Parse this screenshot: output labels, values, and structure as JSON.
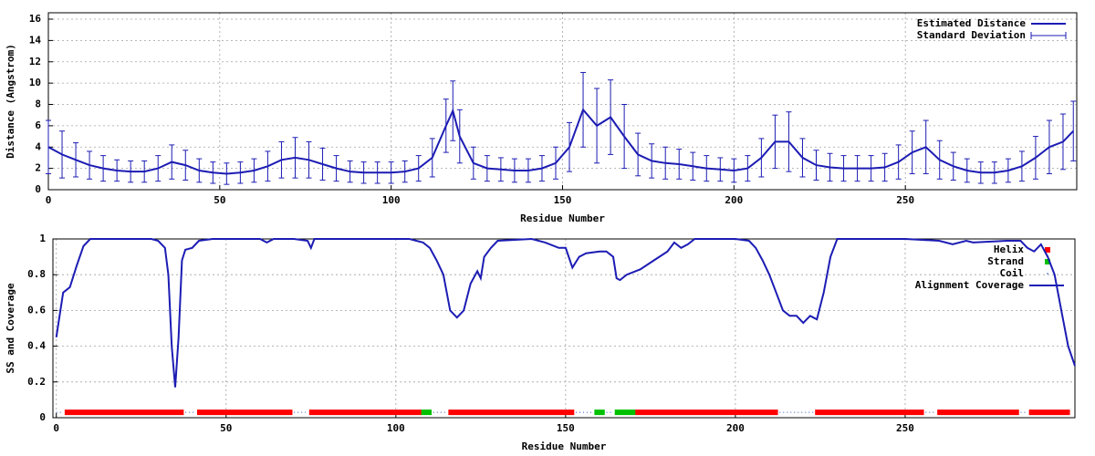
{
  "chart_data": [
    {
      "type": "line",
      "y_label": "Distance (Angstrom)",
      "x_label": "Residue Number",
      "grid": true,
      "xlim": [
        0,
        300
      ],
      "xticks": [
        0,
        50,
        100,
        150,
        200,
        250
      ],
      "ylim": [
        0,
        16.6
      ],
      "yticks": [
        0,
        2,
        4,
        6,
        8,
        10,
        12,
        14,
        16
      ],
      "legend": "top-right",
      "x": [
        0,
        4,
        8,
        12,
        16,
        20,
        24,
        28,
        32,
        36,
        40,
        44,
        48,
        52,
        56,
        60,
        64,
        68,
        72,
        76,
        80,
        84,
        88,
        92,
        96,
        100,
        104,
        108,
        112,
        116,
        118,
        120,
        124,
        128,
        132,
        136,
        140,
        144,
        148,
        152,
        156,
        160,
        164,
        168,
        172,
        176,
        180,
        184,
        188,
        192,
        196,
        200,
        204,
        208,
        212,
        216,
        220,
        224,
        228,
        232,
        236,
        240,
        244,
        248,
        252,
        256,
        260,
        264,
        268,
        272,
        276,
        280,
        284,
        288,
        292,
        296,
        299
      ],
      "series": [
        {
          "name": "Estimated Distance",
          "color": "#1c1cb4",
          "error_name": "Standard Deviation",
          "values": [
            4.0,
            3.3,
            2.8,
            2.3,
            2.0,
            1.8,
            1.7,
            1.7,
            2.0,
            2.6,
            2.3,
            1.8,
            1.6,
            1.5,
            1.6,
            1.8,
            2.2,
            2.8,
            3.0,
            2.8,
            2.4,
            2.0,
            1.7,
            1.6,
            1.6,
            1.6,
            1.7,
            2.0,
            3.0,
            6.0,
            7.4,
            5.0,
            2.5,
            2.0,
            1.9,
            1.8,
            1.8,
            2.0,
            2.5,
            4.0,
            7.5,
            6.0,
            6.8,
            5.0,
            3.3,
            2.7,
            2.5,
            2.4,
            2.2,
            2.0,
            1.9,
            1.8,
            2.0,
            3.0,
            4.5,
            4.5,
            3.0,
            2.3,
            2.1,
            2.0,
            2.0,
            2.0,
            2.1,
            2.6,
            3.5,
            4.0,
            2.8,
            2.2,
            1.8,
            1.6,
            1.6,
            1.8,
            2.2,
            3.0,
            4.0,
            4.5,
            5.5
          ],
          "errors": [
            2.5,
            2.2,
            1.6,
            1.3,
            1.2,
            1.0,
            1.0,
            1.0,
            1.2,
            1.6,
            1.4,
            1.1,
            1.0,
            1.0,
            1.0,
            1.1,
            1.4,
            1.7,
            1.9,
            1.7,
            1.5,
            1.2,
            1.0,
            1.0,
            1.0,
            1.0,
            1.0,
            1.2,
            1.8,
            2.5,
            2.8,
            2.5,
            1.5,
            1.2,
            1.1,
            1.1,
            1.1,
            1.2,
            1.5,
            2.3,
            3.5,
            3.5,
            3.5,
            3.0,
            2.0,
            1.6,
            1.5,
            1.4,
            1.3,
            1.2,
            1.1,
            1.1,
            1.2,
            1.8,
            2.5,
            2.8,
            1.8,
            1.4,
            1.3,
            1.2,
            1.2,
            1.2,
            1.3,
            1.6,
            2.0,
            2.5,
            1.8,
            1.3,
            1.1,
            1.0,
            1.0,
            1.1,
            1.4,
            2.0,
            2.5,
            2.6,
            2.8
          ]
        }
      ]
    },
    {
      "type": "line",
      "y_label": "SS and Coverage",
      "x_label": "Residue Number",
      "grid": true,
      "xlim": [
        -1,
        300
      ],
      "xticks": [
        0,
        50,
        100,
        150,
        200,
        250
      ],
      "ylim": [
        0,
        1
      ],
      "yticks": [
        0,
        0.2,
        0.4,
        0.6,
        0.8,
        1
      ],
      "legend": "top-right",
      "ss_tracks": [
        {
          "name": "Helix",
          "color": "#ff0000",
          "y": 0.03,
          "ranges": [
            [
              3,
              37
            ],
            [
              42,
              69
            ],
            [
              75,
              107
            ],
            [
              116,
              126
            ],
            [
              127,
              152
            ],
            [
              171,
              212
            ],
            [
              224,
              255
            ],
            [
              260,
              283
            ],
            [
              287,
              298
            ]
          ]
        },
        {
          "name": "Strand",
          "color": "#00c000",
          "y": 0.03,
          "ranges": [
            [
              108,
              110
            ],
            [
              159,
              161
            ],
            [
              165,
              170
            ]
          ]
        },
        {
          "name": "Coil",
          "color": "#3050c0",
          "y": 0.03,
          "ranges": [
            [
              0,
              2
            ],
            [
              38,
              41
            ],
            [
              70,
              74
            ],
            [
              111,
              115
            ],
            [
              153,
              158
            ],
            [
              162,
              164
            ],
            [
              213,
              223
            ],
            [
              256,
              259
            ],
            [
              284,
              286
            ]
          ]
        }
      ],
      "x": [
        0,
        2,
        4,
        6,
        8,
        10,
        20,
        28,
        30,
        32,
        33,
        34,
        35,
        36,
        37,
        38,
        40,
        42,
        46,
        60,
        62,
        64,
        70,
        74,
        75,
        76,
        100,
        104,
        108,
        110,
        112,
        114,
        116,
        118,
        120,
        122,
        124,
        125,
        126,
        128,
        130,
        140,
        144,
        148,
        150,
        152,
        154,
        156,
        160,
        162,
        164,
        165,
        166,
        168,
        172,
        176,
        180,
        182,
        184,
        186,
        188,
        200,
        204,
        206,
        208,
        210,
        212,
        214,
        216,
        218,
        220,
        222,
        224,
        226,
        228,
        230,
        250,
        260,
        264,
        268,
        270,
        280,
        284,
        286,
        288,
        290,
        292,
        294,
        296,
        298,
        300
      ],
      "series": [
        {
          "name": "Alignment Coverage",
          "color": "#1c1cb4",
          "values": [
            0.45,
            0.7,
            0.73,
            0.85,
            0.96,
            1.0,
            1.0,
            1.0,
            0.99,
            0.95,
            0.8,
            0.4,
            0.17,
            0.45,
            0.88,
            0.94,
            0.95,
            0.99,
            1.0,
            1.0,
            0.98,
            1.0,
            1.0,
            0.99,
            0.95,
            1.0,
            1.0,
            1.0,
            0.98,
            0.95,
            0.88,
            0.8,
            0.6,
            0.56,
            0.6,
            0.75,
            0.82,
            0.78,
            0.9,
            0.95,
            0.99,
            1.0,
            0.98,
            0.95,
            0.95,
            0.84,
            0.9,
            0.92,
            0.93,
            0.93,
            0.9,
            0.78,
            0.77,
            0.8,
            0.83,
            0.88,
            0.93,
            0.98,
            0.95,
            0.97,
            1.0,
            1.0,
            0.99,
            0.95,
            0.88,
            0.8,
            0.7,
            0.6,
            0.57,
            0.57,
            0.53,
            0.57,
            0.55,
            0.7,
            0.9,
            1.0,
            1.0,
            0.99,
            0.97,
            0.99,
            0.98,
            0.99,
            0.99,
            0.95,
            0.93,
            0.97,
            0.9,
            0.8,
            0.6,
            0.4,
            0.29
          ]
        }
      ]
    }
  ]
}
